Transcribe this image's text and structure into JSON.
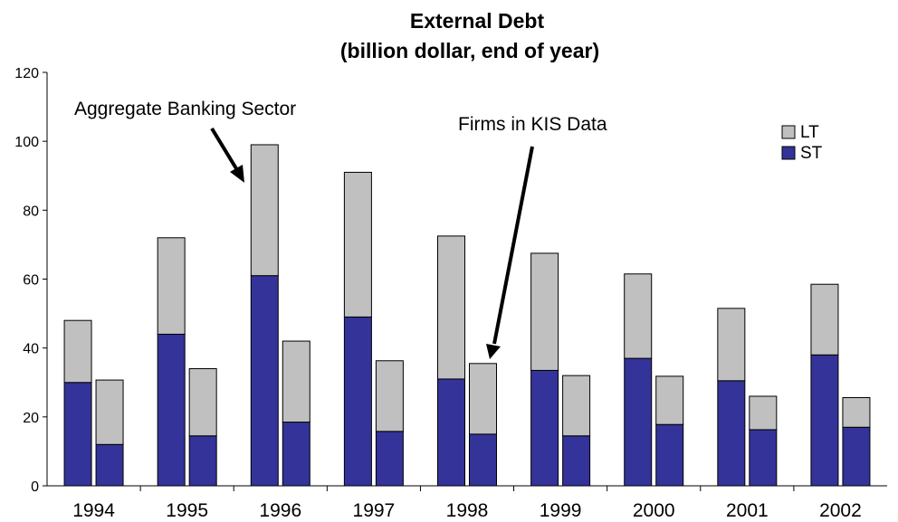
{
  "chart_data": {
    "type": "bar",
    "title": "External Debt",
    "subtitle": "(billion dollar, end of year)",
    "xlabel": "",
    "ylabel": "",
    "ylim": [
      0,
      120
    ],
    "yticks": [
      0,
      20,
      40,
      60,
      80,
      100,
      120
    ],
    "grid": false,
    "stacked": true,
    "legend_placement": "top-right",
    "categories": [
      "1994",
      "1995",
      "1996",
      "1997",
      "1998",
      "1999",
      "2000",
      "2001",
      "2002"
    ],
    "groups": [
      "Aggregate Banking Sector",
      "Firms in KIS Data"
    ],
    "series": [
      {
        "name": "ST",
        "color": "#333399",
        "values_by_group": [
          [
            30,
            44,
            61,
            49,
            31,
            33.5,
            37,
            30.5,
            38
          ],
          [
            12,
            14.5,
            18.5,
            15.8,
            15,
            14.5,
            17.8,
            16.3,
            17
          ]
        ]
      },
      {
        "name": "LT",
        "color": "#c0c0c0",
        "values_by_group": [
          [
            18,
            28,
            38,
            42,
            41.5,
            34,
            24.5,
            21,
            20.5
          ],
          [
            18.7,
            19.5,
            23.5,
            20.5,
            20.5,
            17.5,
            14,
            9.7,
            8.6
          ]
        ]
      }
    ],
    "annotations": [
      {
        "text": "Aggregate Banking Sector",
        "points_to": {
          "category": "1996",
          "group": 0
        }
      },
      {
        "text": "Firms in KIS Data",
        "points_to": {
          "category": "1998",
          "group": 1
        }
      }
    ]
  }
}
